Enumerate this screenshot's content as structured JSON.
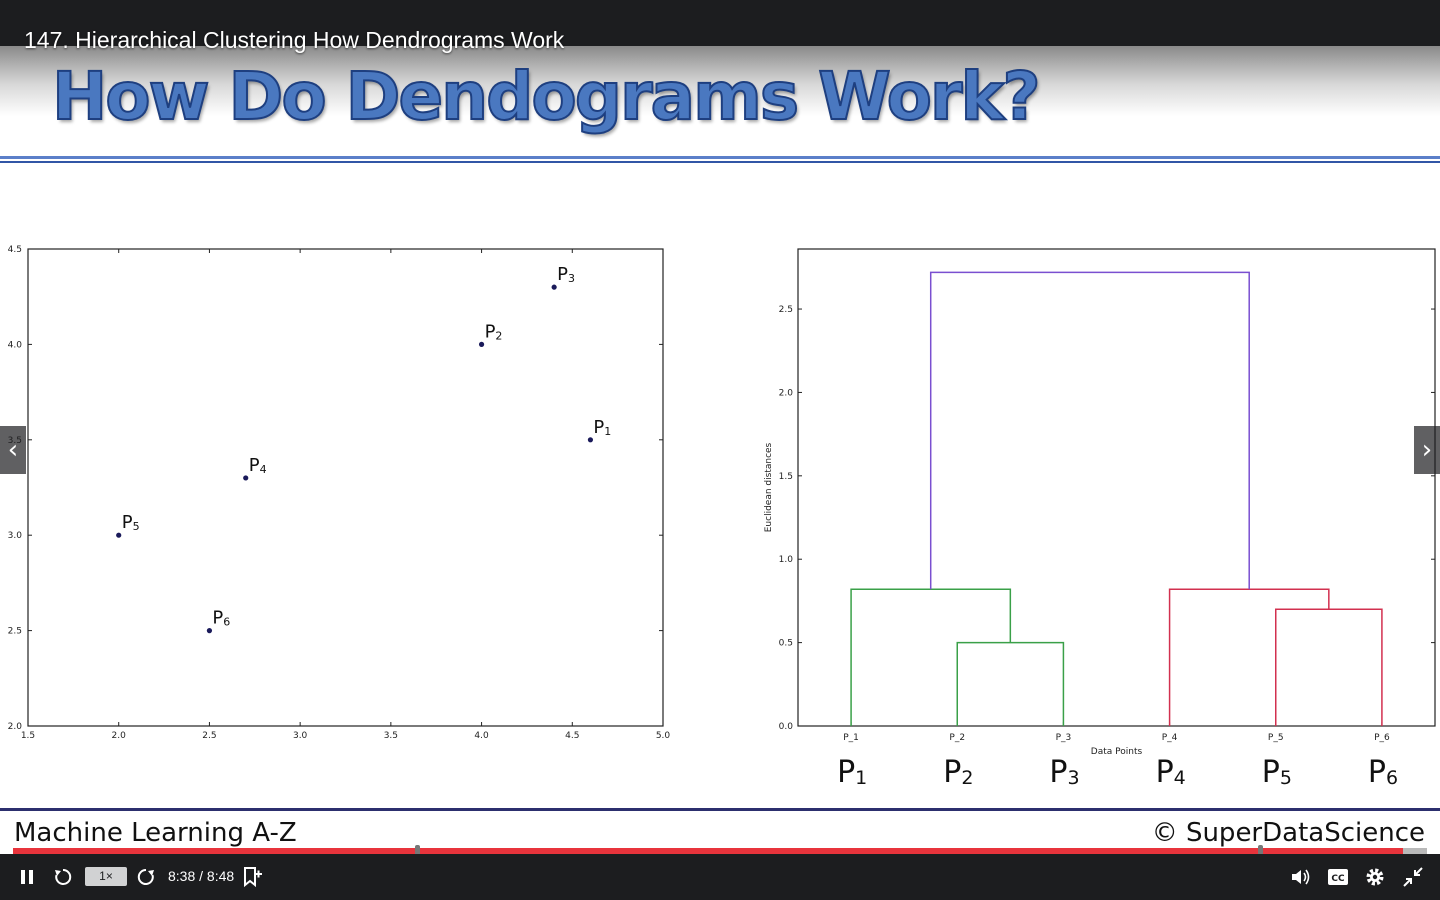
{
  "player": {
    "lecture_title": "147. Hierarchical Clustering How Dendrograms Work",
    "speed_label": "1×",
    "time": "8:38 / 8:48",
    "progress_fraction": 0.983
  },
  "slide": {
    "heading": "How Do Dendograms Work?",
    "footer_left": "Machine Learning A-Z",
    "footer_right": "© SuperDataScience",
    "big_labels": [
      {
        "p": "P",
        "sub": "1"
      },
      {
        "p": "P",
        "sub": "2"
      },
      {
        "p": "P",
        "sub": "3"
      },
      {
        "p": "P",
        "sub": "4"
      },
      {
        "p": "P",
        "sub": "5"
      },
      {
        "p": "P",
        "sub": "6"
      }
    ]
  },
  "chart_data": [
    {
      "type": "scatter",
      "xlim": [
        1.5,
        5.0
      ],
      "ylim": [
        2.0,
        4.5
      ],
      "x_ticks": [
        "1.5",
        "2.0",
        "2.5",
        "3.0",
        "3.5",
        "4.0",
        "4.5",
        "5.0"
      ],
      "y_ticks": [
        "2.0",
        "2.5",
        "3.0",
        "3.5",
        "4.0",
        "4.5"
      ],
      "points": [
        {
          "label": "P",
          "sub": "1",
          "x": 4.6,
          "y": 3.5
        },
        {
          "label": "P",
          "sub": "2",
          "x": 4.0,
          "y": 4.0
        },
        {
          "label": "P",
          "sub": "3",
          "x": 4.4,
          "y": 4.3
        },
        {
          "label": "P",
          "sub": "4",
          "x": 2.7,
          "y": 3.3
        },
        {
          "label": "P",
          "sub": "5",
          "x": 2.0,
          "y": 3.0
        },
        {
          "label": "P",
          "sub": "6",
          "x": 2.5,
          "y": 2.5
        }
      ],
      "point_color": "#1a1a5a"
    },
    {
      "type": "dendrogram",
      "xlabel": "Data Points",
      "ylabel": "Euclidean distances",
      "ylim": [
        0.0,
        2.86
      ],
      "y_ticks": [
        "0.0",
        "0.5",
        "1.0",
        "1.5",
        "2.0",
        "2.5"
      ],
      "leaves": [
        "P_1",
        "P_2",
        "P_3",
        "P_4",
        "P_5",
        "P_6"
      ],
      "links": [
        {
          "left": "P_2",
          "right": "P_3",
          "height": 0.5,
          "color": "#3aa048"
        },
        {
          "left": "P_1",
          "right": "P_2+P_3",
          "height": 0.82,
          "color": "#3aa048"
        },
        {
          "left": "P_5",
          "right": "P_6",
          "height": 0.7,
          "color": "#d2304f"
        },
        {
          "left": "P_4",
          "right": "P_5+P_6",
          "height": 0.82,
          "color": "#d2304f"
        },
        {
          "left": "P_1+P_2+P_3",
          "right": "P_4+P_5+P_6",
          "height": 2.72,
          "color": "#7a4fd0"
        }
      ]
    }
  ]
}
